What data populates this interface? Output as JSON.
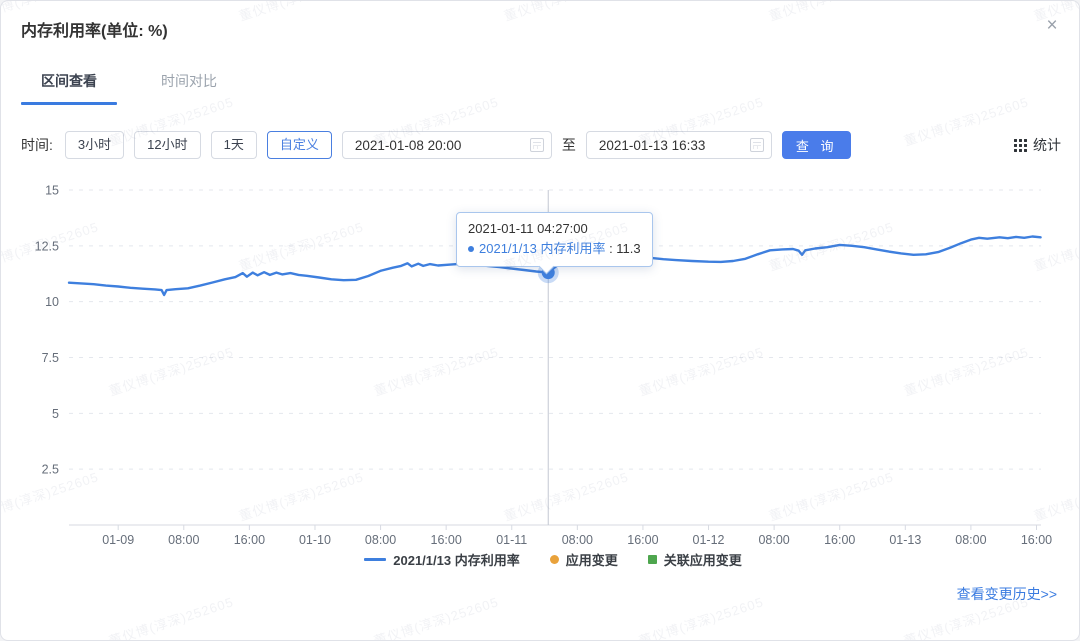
{
  "modal": {
    "title": "内存利用率(单位: %)",
    "close": "×"
  },
  "tabs": [
    {
      "label": "区间查看",
      "active": true
    },
    {
      "label": "时间对比",
      "active": false
    }
  ],
  "controls": {
    "time_label": "时间:",
    "range_buttons": [
      "3小时",
      "12小时",
      "1天"
    ],
    "custom_button": "自定义",
    "start_time": "2021-01-08 20:00",
    "to_label": "至",
    "end_time": "2021-01-13 16:33",
    "query_button": "查 询",
    "stats_label": "统计"
  },
  "tooltip": {
    "time": "2021-01-11 04:27:00",
    "series": "2021/1/13 内存利用率",
    "value_label": " : 11.3"
  },
  "legend": [
    {
      "label": "2021/1/13 内存利用率",
      "marker": "line",
      "color": "#3e7fde"
    },
    {
      "label": "应用变更",
      "marker": "dot",
      "color": "#e9a23b"
    },
    {
      "label": "关联应用变更",
      "marker": "square",
      "color": "#4ea64e"
    }
  ],
  "footer": {
    "history_link": "查看变更历史>>"
  },
  "watermark": {
    "text": "董仪博(淳深)252605"
  },
  "chart_data": {
    "type": "line",
    "title": "内存利用率(单位: %)",
    "series_name": "2021/1/13 内存利用率",
    "unit": "%",
    "line_color": "#3e7fde",
    "grid_color": "#e4e7ed",
    "axis_color": "#d7dae2",
    "crosshair_color": "#c3c8d2",
    "grid": "dashed-horizontal",
    "legend_position": "bottom",
    "ylim": [
      0,
      15
    ],
    "y_ticks": [
      2.5,
      5,
      7.5,
      10,
      12.5,
      15
    ],
    "x_axis": {
      "start": "2021-01-08 18:00",
      "end": "2021-01-13 16:33",
      "hours": 118.55,
      "ticks": [
        {
          "t": 6,
          "label": "01-09"
        },
        {
          "t": 14,
          "label": "08:00"
        },
        {
          "t": 22,
          "label": "16:00"
        },
        {
          "t": 30,
          "label": "01-10"
        },
        {
          "t": 38,
          "label": "08:00"
        },
        {
          "t": 46,
          "label": "16:00"
        },
        {
          "t": 54,
          "label": "01-11"
        },
        {
          "t": 62,
          "label": "08:00"
        },
        {
          "t": 70,
          "label": "16:00"
        },
        {
          "t": 78,
          "label": "01-12"
        },
        {
          "t": 86,
          "label": "08:00"
        },
        {
          "t": 94,
          "label": "16:00"
        },
        {
          "t": 102,
          "label": "01-13"
        },
        {
          "t": 110,
          "label": "08:00"
        },
        {
          "t": 118,
          "label": "16:00"
        }
      ]
    },
    "marker": {
      "t": 58.45,
      "v": 11.3,
      "time": "2021-01-11 04:27:00"
    },
    "points": [
      [
        0,
        10.85
      ],
      [
        1.5,
        10.82
      ],
      [
        3,
        10.78
      ],
      [
        4.5,
        10.72
      ],
      [
        6,
        10.68
      ],
      [
        7.5,
        10.62
      ],
      [
        9,
        10.58
      ],
      [
        10.5,
        10.55
      ],
      [
        11.3,
        10.52
      ],
      [
        11.6,
        10.3
      ],
      [
        11.9,
        10.52
      ],
      [
        13,
        10.56
      ],
      [
        14.5,
        10.6
      ],
      [
        16,
        10.72
      ],
      [
        17.5,
        10.86
      ],
      [
        19,
        11.0
      ],
      [
        20.3,
        11.1
      ],
      [
        21.2,
        11.28
      ],
      [
        21.7,
        11.12
      ],
      [
        22.4,
        11.3
      ],
      [
        23,
        11.18
      ],
      [
        23.8,
        11.32
      ],
      [
        24.5,
        11.2
      ],
      [
        25.3,
        11.3
      ],
      [
        26,
        11.22
      ],
      [
        27,
        11.28
      ],
      [
        28,
        11.2
      ],
      [
        29,
        11.16
      ],
      [
        30.5,
        11.08
      ],
      [
        32,
        11.0
      ],
      [
        33.5,
        10.96
      ],
      [
        35,
        10.98
      ],
      [
        36.5,
        11.15
      ],
      [
        38,
        11.38
      ],
      [
        39.5,
        11.52
      ],
      [
        40.5,
        11.6
      ],
      [
        41.3,
        11.72
      ],
      [
        41.8,
        11.58
      ],
      [
        42.6,
        11.7
      ],
      [
        43.2,
        11.6
      ],
      [
        44,
        11.68
      ],
      [
        45,
        11.62
      ],
      [
        46.5,
        11.66
      ],
      [
        48,
        11.7
      ],
      [
        49.5,
        11.68
      ],
      [
        51,
        11.6
      ],
      [
        52.5,
        11.55
      ],
      [
        54,
        11.48
      ],
      [
        55.5,
        11.42
      ],
      [
        57,
        11.35
      ],
      [
        58.45,
        11.3
      ],
      [
        59.3,
        11.55
      ],
      [
        60.2,
        11.82
      ],
      [
        61.5,
        11.93
      ],
      [
        63,
        11.98
      ],
      [
        64.5,
        12.0
      ],
      [
        66,
        11.96
      ],
      [
        67.5,
        11.94
      ],
      [
        69,
        11.98
      ],
      [
        70.2,
        12.0
      ],
      [
        70.6,
        12.22
      ],
      [
        71,
        11.96
      ],
      [
        72.5,
        11.9
      ],
      [
        74,
        11.86
      ],
      [
        76,
        11.82
      ],
      [
        78,
        11.79
      ],
      [
        79.5,
        11.78
      ],
      [
        81,
        11.82
      ],
      [
        82.5,
        11.92
      ],
      [
        84,
        12.12
      ],
      [
        85.5,
        12.3
      ],
      [
        87,
        12.34
      ],
      [
        88.3,
        12.36
      ],
      [
        89,
        12.28
      ],
      [
        89.4,
        12.1
      ],
      [
        89.8,
        12.3
      ],
      [
        91,
        12.38
      ],
      [
        92.5,
        12.44
      ],
      [
        94,
        12.54
      ],
      [
        95.5,
        12.5
      ],
      [
        97,
        12.44
      ],
      [
        98.5,
        12.34
      ],
      [
        100,
        12.24
      ],
      [
        101.5,
        12.16
      ],
      [
        103,
        12.1
      ],
      [
        104.5,
        12.12
      ],
      [
        106,
        12.22
      ],
      [
        107.5,
        12.42
      ],
      [
        108.8,
        12.62
      ],
      [
        110,
        12.78
      ],
      [
        111,
        12.86
      ],
      [
        112,
        12.82
      ],
      [
        113.5,
        12.88
      ],
      [
        114.5,
        12.84
      ],
      [
        115.5,
        12.9
      ],
      [
        116.5,
        12.86
      ],
      [
        117.5,
        12.92
      ],
      [
        118.5,
        12.88
      ]
    ]
  }
}
